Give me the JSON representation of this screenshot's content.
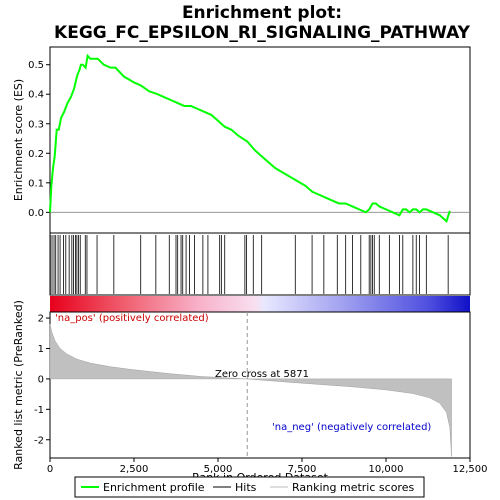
{
  "chart_data": {
    "type": "line",
    "title_line1": "Enrichment plot:",
    "title_line2": "KEGG_FC_EPSILON_RI_SIGNALING_PATHWAY",
    "top_panel": {
      "ylabel": "Enrichment score (ES)",
      "ylim": [
        -0.07,
        0.56
      ],
      "yticks": [
        "0.0",
        "0.1",
        "0.2",
        "0.3",
        "0.4",
        "0.5"
      ],
      "ytick_values": [
        0.0,
        0.1,
        0.2,
        0.3,
        0.4,
        0.5
      ],
      "series": [
        {
          "name": "Enrichment profile",
          "color": "#00ff00",
          "x": [
            0,
            40,
            90,
            140,
            200,
            260,
            330,
            420,
            520,
            620,
            720,
            780,
            830,
            870,
            920,
            980,
            1060,
            1120,
            1200,
            1300,
            1420,
            1600,
            1800,
            1950,
            2200,
            2500,
            2700,
            2950,
            3200,
            3400,
            3600,
            3800,
            4000,
            4200,
            4400,
            4600,
            4800,
            5000,
            5200,
            5400,
            5600,
            5871,
            6100,
            6400,
            6700,
            7000,
            7300,
            7600,
            7800,
            8000,
            8200,
            8400,
            8600,
            8800,
            9000,
            9200,
            9400,
            9500,
            9600,
            9700,
            9800,
            10000,
            10200,
            10400,
            10500,
            10600,
            10700,
            10800,
            10900,
            11000,
            11100,
            11200,
            11400,
            11600,
            11800,
            11900
          ],
          "y": [
            0.0,
            0.09,
            0.15,
            0.19,
            0.28,
            0.28,
            0.32,
            0.34,
            0.37,
            0.39,
            0.42,
            0.45,
            0.47,
            0.48,
            0.5,
            0.5,
            0.49,
            0.53,
            0.52,
            0.52,
            0.52,
            0.5,
            0.49,
            0.49,
            0.46,
            0.44,
            0.43,
            0.41,
            0.4,
            0.39,
            0.38,
            0.37,
            0.36,
            0.36,
            0.35,
            0.34,
            0.33,
            0.31,
            0.29,
            0.28,
            0.26,
            0.24,
            0.21,
            0.18,
            0.15,
            0.13,
            0.11,
            0.09,
            0.07,
            0.06,
            0.05,
            0.04,
            0.03,
            0.03,
            0.02,
            0.01,
            0.0,
            0.01,
            0.03,
            0.03,
            0.02,
            0.01,
            0.0,
            -0.01,
            0.01,
            0.01,
            0.0,
            0.01,
            0.01,
            0.0,
            0.01,
            0.01,
            0.0,
            -0.01,
            -0.03,
            0.005
          ]
        }
      ]
    },
    "hits": [
      10,
      60,
      120,
      170,
      240,
      300,
      400,
      470,
      570,
      650,
      700,
      760,
      800,
      850,
      900,
      1050,
      1100,
      1400,
      1900,
      2700,
      3150,
      3550,
      3750,
      3800,
      3900,
      3950,
      4050,
      4150,
      4300,
      4550,
      4700,
      5050,
      5100,
      5200,
      5800,
      5850,
      6050,
      6300,
      7300,
      7800,
      8150,
      8550,
      8800,
      9000,
      9250,
      9500,
      9550,
      9600,
      9650,
      9800,
      10100,
      10400,
      10500,
      10800,
      10900,
      11000,
      11200,
      11850
    ],
    "bottom_panel": {
      "ylabel": "Ranked list metric (PreRanked)",
      "ylim": [
        -2.6,
        2.2
      ],
      "yticks": [
        "2",
        "1",
        "0",
        "-1",
        "-2"
      ],
      "ytick_values": [
        2,
        1,
        0,
        -1,
        -2
      ],
      "xlabel": "Rank in Ordered Dataset",
      "xlim": [
        0,
        12500
      ],
      "xticks": [
        "0",
        "2,500",
        "5,000",
        "7,500",
        "10,000",
        "12,500"
      ],
      "xtick_values": [
        0,
        2500,
        5000,
        7500,
        10000,
        12500
      ],
      "metric_x": [
        0,
        50,
        150,
        300,
        500,
        800,
        1200,
        1800,
        2500,
        3500,
        4500,
        5871,
        7000,
        8000,
        9000,
        10000,
        10800,
        11300,
        11600,
        11800,
        11900,
        11950
      ],
      "metric_y": [
        1.8,
        1.55,
        1.25,
        1.0,
        0.82,
        0.65,
        0.52,
        0.4,
        0.3,
        0.18,
        0.08,
        0.0,
        -0.1,
        -0.18,
        -0.26,
        -0.36,
        -0.48,
        -0.62,
        -0.8,
        -1.1,
        -1.6,
        -2.55
      ],
      "zero_cross_label": "Zero cross at 5871",
      "zero_cross": 5871,
      "pos_label": "'na_pos' (positively correlated)",
      "neg_label": "'na_neg' (negatively correlated)"
    },
    "legend": [
      {
        "label": "Enrichment profile",
        "color": "#00ff00",
        "kind": "line"
      },
      {
        "label": "Hits",
        "color": "#000000",
        "kind": "line"
      },
      {
        "label": "Ranking metric scores",
        "color": "#bbbbbb",
        "kind": "line"
      }
    ],
    "legend_position": "bottom",
    "colors": {
      "enrichment": "#00ff00",
      "metric_fill": "#c0c0c0",
      "pos_label": "#cc0000",
      "neg_label": "#0000cc",
      "bar_red": "#e8001c",
      "bar_blue": "#2020e0"
    }
  }
}
